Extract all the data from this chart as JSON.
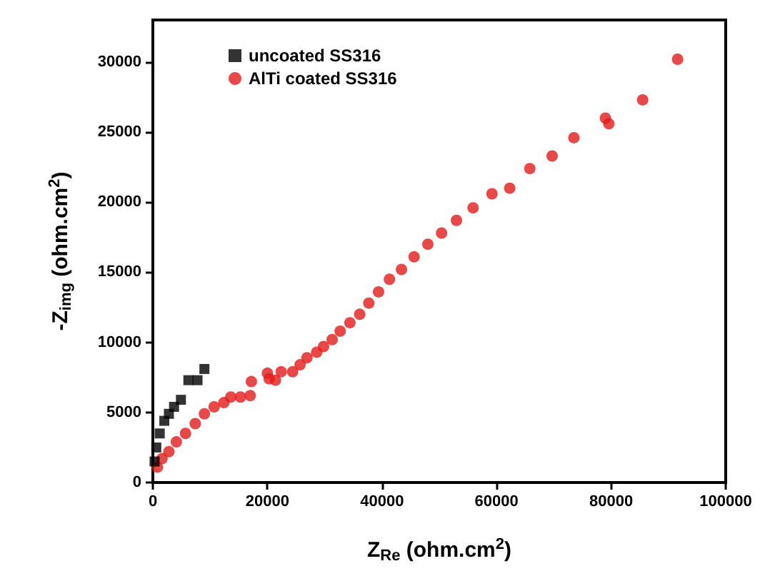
{
  "chart_data": {
    "type": "scatter",
    "xlabel": "Z$_{Re}$ (ohm.cm$^{2}$)",
    "ylabel": "-Z$_{img}$ (ohm.cm$^{2}$)",
    "xlim": [
      0,
      100000
    ],
    "xticks": [
      0,
      20000,
      40000,
      60000,
      80000,
      100000
    ],
    "ylim": [
      0,
      33000
    ],
    "yticks": [
      0,
      5000,
      10000,
      15000,
      20000,
      25000,
      30000
    ],
    "grid": false,
    "legend": "top left",
    "series": [
      {
        "name": "uncoated SS316",
        "color": "#000000",
        "marker": "square",
        "x": [
          300,
          600,
          1200,
          2000,
          2800,
          3700,
          4900,
          6200,
          7800,
          9000
        ],
        "values": [
          1500,
          2500,
          3500,
          4400,
          4900,
          5400,
          5900,
          7300,
          7300,
          8100
        ]
      },
      {
        "name": "AlTi coated SS316",
        "color": "#e31a1a",
        "marker": "circle",
        "x": [
          800,
          1600,
          2800,
          4100,
          5700,
          7400,
          9000,
          10700,
          12400,
          13600,
          15300,
          17000,
          17200,
          20000,
          20300,
          21400,
          22400,
          24400,
          25700,
          26900,
          28600,
          29800,
          31300,
          32700,
          34400,
          36100,
          37700,
          39400,
          41300,
          43400,
          45600,
          48000,
          50400,
          53000,
          55900,
          59200,
          62300,
          65800,
          69700,
          73500,
          79000,
          79600,
          85500,
          91600
        ],
        "values": [
          1100,
          1700,
          2200,
          2900,
          3500,
          4200,
          4900,
          5400,
          5700,
          6100,
          6100,
          6200,
          7200,
          7800,
          7400,
          7300,
          7900,
          7900,
          8400,
          8900,
          9300,
          9700,
          10200,
          10800,
          11400,
          12000,
          12800,
          13600,
          14500,
          15200,
          16100,
          17000,
          17800,
          18700,
          19600,
          20600,
          21000,
          22400,
          23300,
          24600,
          26000,
          25600,
          27300,
          30200
        ]
      }
    ]
  }
}
